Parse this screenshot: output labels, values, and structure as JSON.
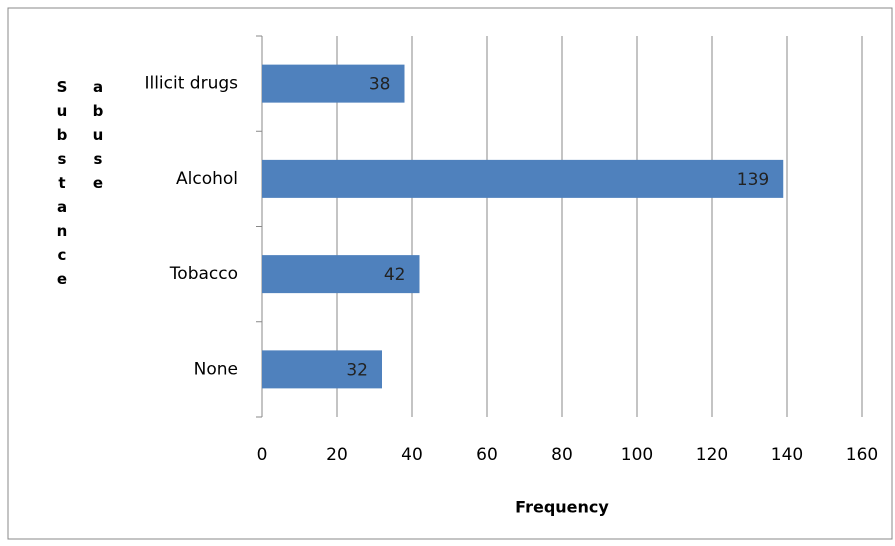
{
  "chart_data": {
    "type": "bar",
    "orientation": "horizontal",
    "categories": [
      "Illicit drugs",
      "Alcohol",
      "Tobacco",
      "None"
    ],
    "values": [
      38,
      139,
      42,
      32
    ],
    "color": "#4f81bd",
    "xlim": [
      0,
      160
    ],
    "xticks": [
      0,
      20,
      40,
      60,
      80,
      100,
      120,
      140,
      160
    ],
    "xlabel": "Frequency",
    "ylabel": "Substance abuse",
    "grid": true
  }
}
